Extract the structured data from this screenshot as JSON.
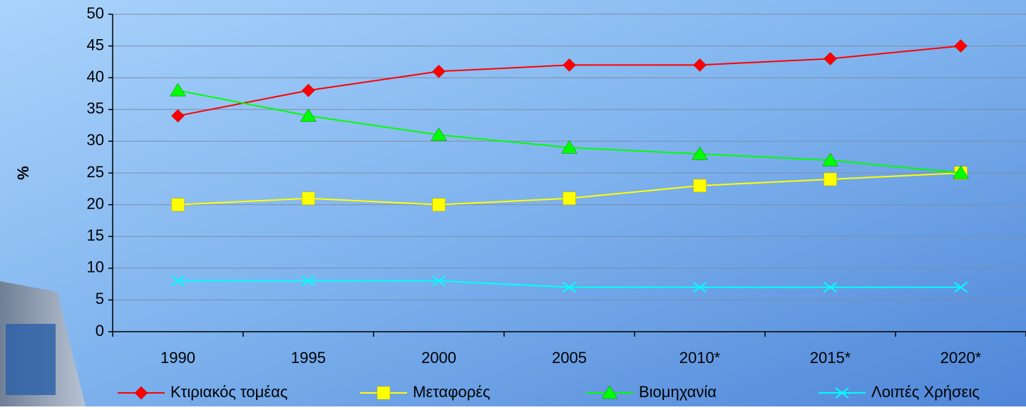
{
  "chart_data": {
    "type": "line",
    "y_label": "%",
    "categories": [
      "1990",
      "1995",
      "2000",
      "2005",
      "2010*",
      "2015*",
      "2020*"
    ],
    "series": [
      {
        "name": "Κτιριακός τομέας",
        "color": "#ff0000",
        "marker": "diamond",
        "values": [
          34,
          38,
          41,
          42,
          42,
          43,
          45
        ]
      },
      {
        "name": "Μεταφορές",
        "color": "#ffff00",
        "marker": "square",
        "values": [
          20,
          21,
          20,
          21,
          23,
          24,
          25
        ]
      },
      {
        "name": "Βιομηχανία",
        "color": "#00ff00",
        "marker": "triangle",
        "values": [
          38,
          34,
          31,
          29,
          28,
          27,
          25
        ]
      },
      {
        "name": "Λοιπές Χρήσεις",
        "color": "#00ffff",
        "marker": "x",
        "values": [
          8,
          8,
          8,
          7,
          7,
          7,
          7
        ]
      }
    ],
    "ylim": [
      0,
      50
    ],
    "yticks": [
      0,
      5,
      10,
      15,
      20,
      25,
      30,
      35,
      40,
      45,
      50
    ],
    "grid": true,
    "legend": "bottom"
  }
}
